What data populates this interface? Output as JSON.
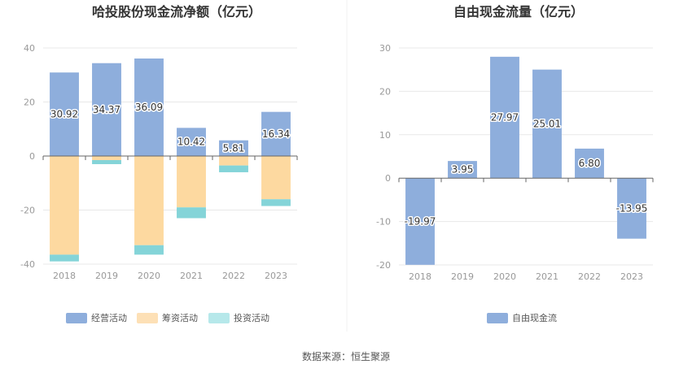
{
  "source_text": "数据来源：恒生聚源",
  "colors": {
    "operating": "#8eaedc",
    "financing": "#fdd9a0",
    "investing": "#84d4d8",
    "fcf": "#8eaedc",
    "legend_operating": "#8eaedc",
    "legend_financing": "#fde0b6",
    "legend_investing": "#b6e8ea"
  },
  "chart_data": [
    {
      "type": "bar",
      "stacked": true,
      "title": "哈投股份现金流净额（亿元）",
      "categories": [
        "2018",
        "2019",
        "2020",
        "2021",
        "2022",
        "2023"
      ],
      "ylim": [
        -40,
        40
      ],
      "yticks": [
        40,
        20,
        0,
        -20,
        -40
      ],
      "grid": true,
      "legend_position": "bottom",
      "series": [
        {
          "key": "operating",
          "name": "经营活动",
          "values": [
            30.92,
            34.37,
            36.09,
            10.42,
            5.81,
            16.34
          ],
          "labels": [
            "30.92",
            "34.37",
            "36.09",
            "10.42",
            "5.81",
            "16.34"
          ]
        },
        {
          "key": "financing",
          "name": "筹资活动",
          "values": [
            -36.5,
            -1.5,
            -33,
            -19,
            -3.5,
            -16
          ]
        },
        {
          "key": "investing",
          "name": "投资活动",
          "values": [
            -2.5,
            -1.5,
            -3.5,
            -4,
            -2.5,
            -2.5
          ]
        }
      ]
    },
    {
      "type": "bar",
      "title": "自由现金流量（亿元）",
      "categories": [
        "2018",
        "2019",
        "2020",
        "2021",
        "2022",
        "2023"
      ],
      "ylim": [
        -20,
        30
      ],
      "yticks": [
        30,
        20,
        10,
        0,
        -10,
        -20
      ],
      "grid": true,
      "legend_position": "bottom",
      "series": [
        {
          "key": "fcf",
          "name": "自由现金流",
          "values": [
            -19.97,
            3.95,
            27.97,
            25.01,
            6.8,
            -13.95
          ],
          "labels": [
            "-19.97",
            "3.95",
            "27.97",
            "25.01",
            "6.80",
            "-13.95"
          ]
        }
      ]
    }
  ]
}
